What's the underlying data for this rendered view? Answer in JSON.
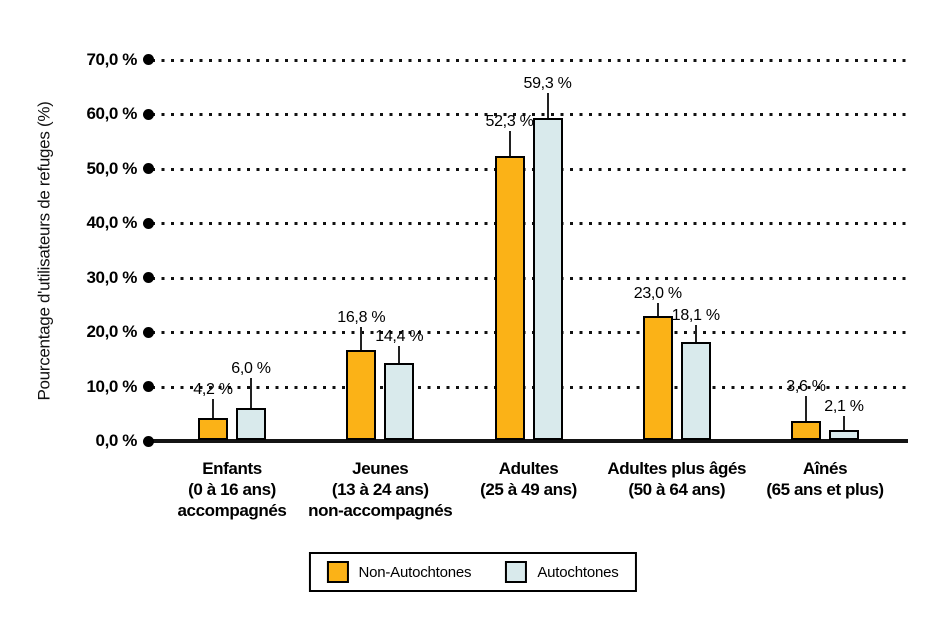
{
  "chart_data": {
    "type": "bar",
    "title": "",
    "ylabel": "Pourcentage d'utilisateurs de refuges (%)",
    "xlabel": "",
    "ylim": [
      0,
      70
    ],
    "grid": "dotted-horizontal",
    "legend_position": "bottom",
    "yticks": [
      {
        "value": 70,
        "label": "70,0 %"
      },
      {
        "value": 60,
        "label": "60,0 %"
      },
      {
        "value": 50,
        "label": "50,0 %"
      },
      {
        "value": 40,
        "label": "40,0 %"
      },
      {
        "value": 30,
        "label": "30,0 %"
      },
      {
        "value": 20,
        "label": "20,0 %"
      },
      {
        "value": 10,
        "label": "10,0 %"
      },
      {
        "value": 0,
        "label": "0,0 %"
      }
    ],
    "categories": [
      {
        "lines": [
          "Enfants",
          "(0 à 16 ans)",
          "accompagnés"
        ]
      },
      {
        "lines": [
          "Jeunes",
          "(13 à 24 ans)",
          "non-accompagnés"
        ]
      },
      {
        "lines": [
          "Adultes",
          "(25 à 49 ans)"
        ]
      },
      {
        "lines": [
          "Adultes plus âgés",
          "(50 à 64 ans)"
        ]
      },
      {
        "lines": [
          "Aînés",
          "(65 ans et plus)"
        ]
      }
    ],
    "series": [
      {
        "name": "Non-Autochtones",
        "color": "#FBB217",
        "values": [
          4.2,
          16.8,
          52.3,
          23.0,
          3.6
        ],
        "labels": [
          "4,2 %",
          "16,8 %",
          "52,3 %",
          "23,0 %",
          "3,6 %"
        ]
      },
      {
        "name": "Autochtones",
        "color": "#D9EAEC",
        "values": [
          6.0,
          14.4,
          59.3,
          18.1,
          2.1
        ],
        "labels": [
          "6,0 %",
          "14,4 %",
          "59,3 %",
          "18,1 %",
          "2,1 %"
        ]
      }
    ]
  }
}
